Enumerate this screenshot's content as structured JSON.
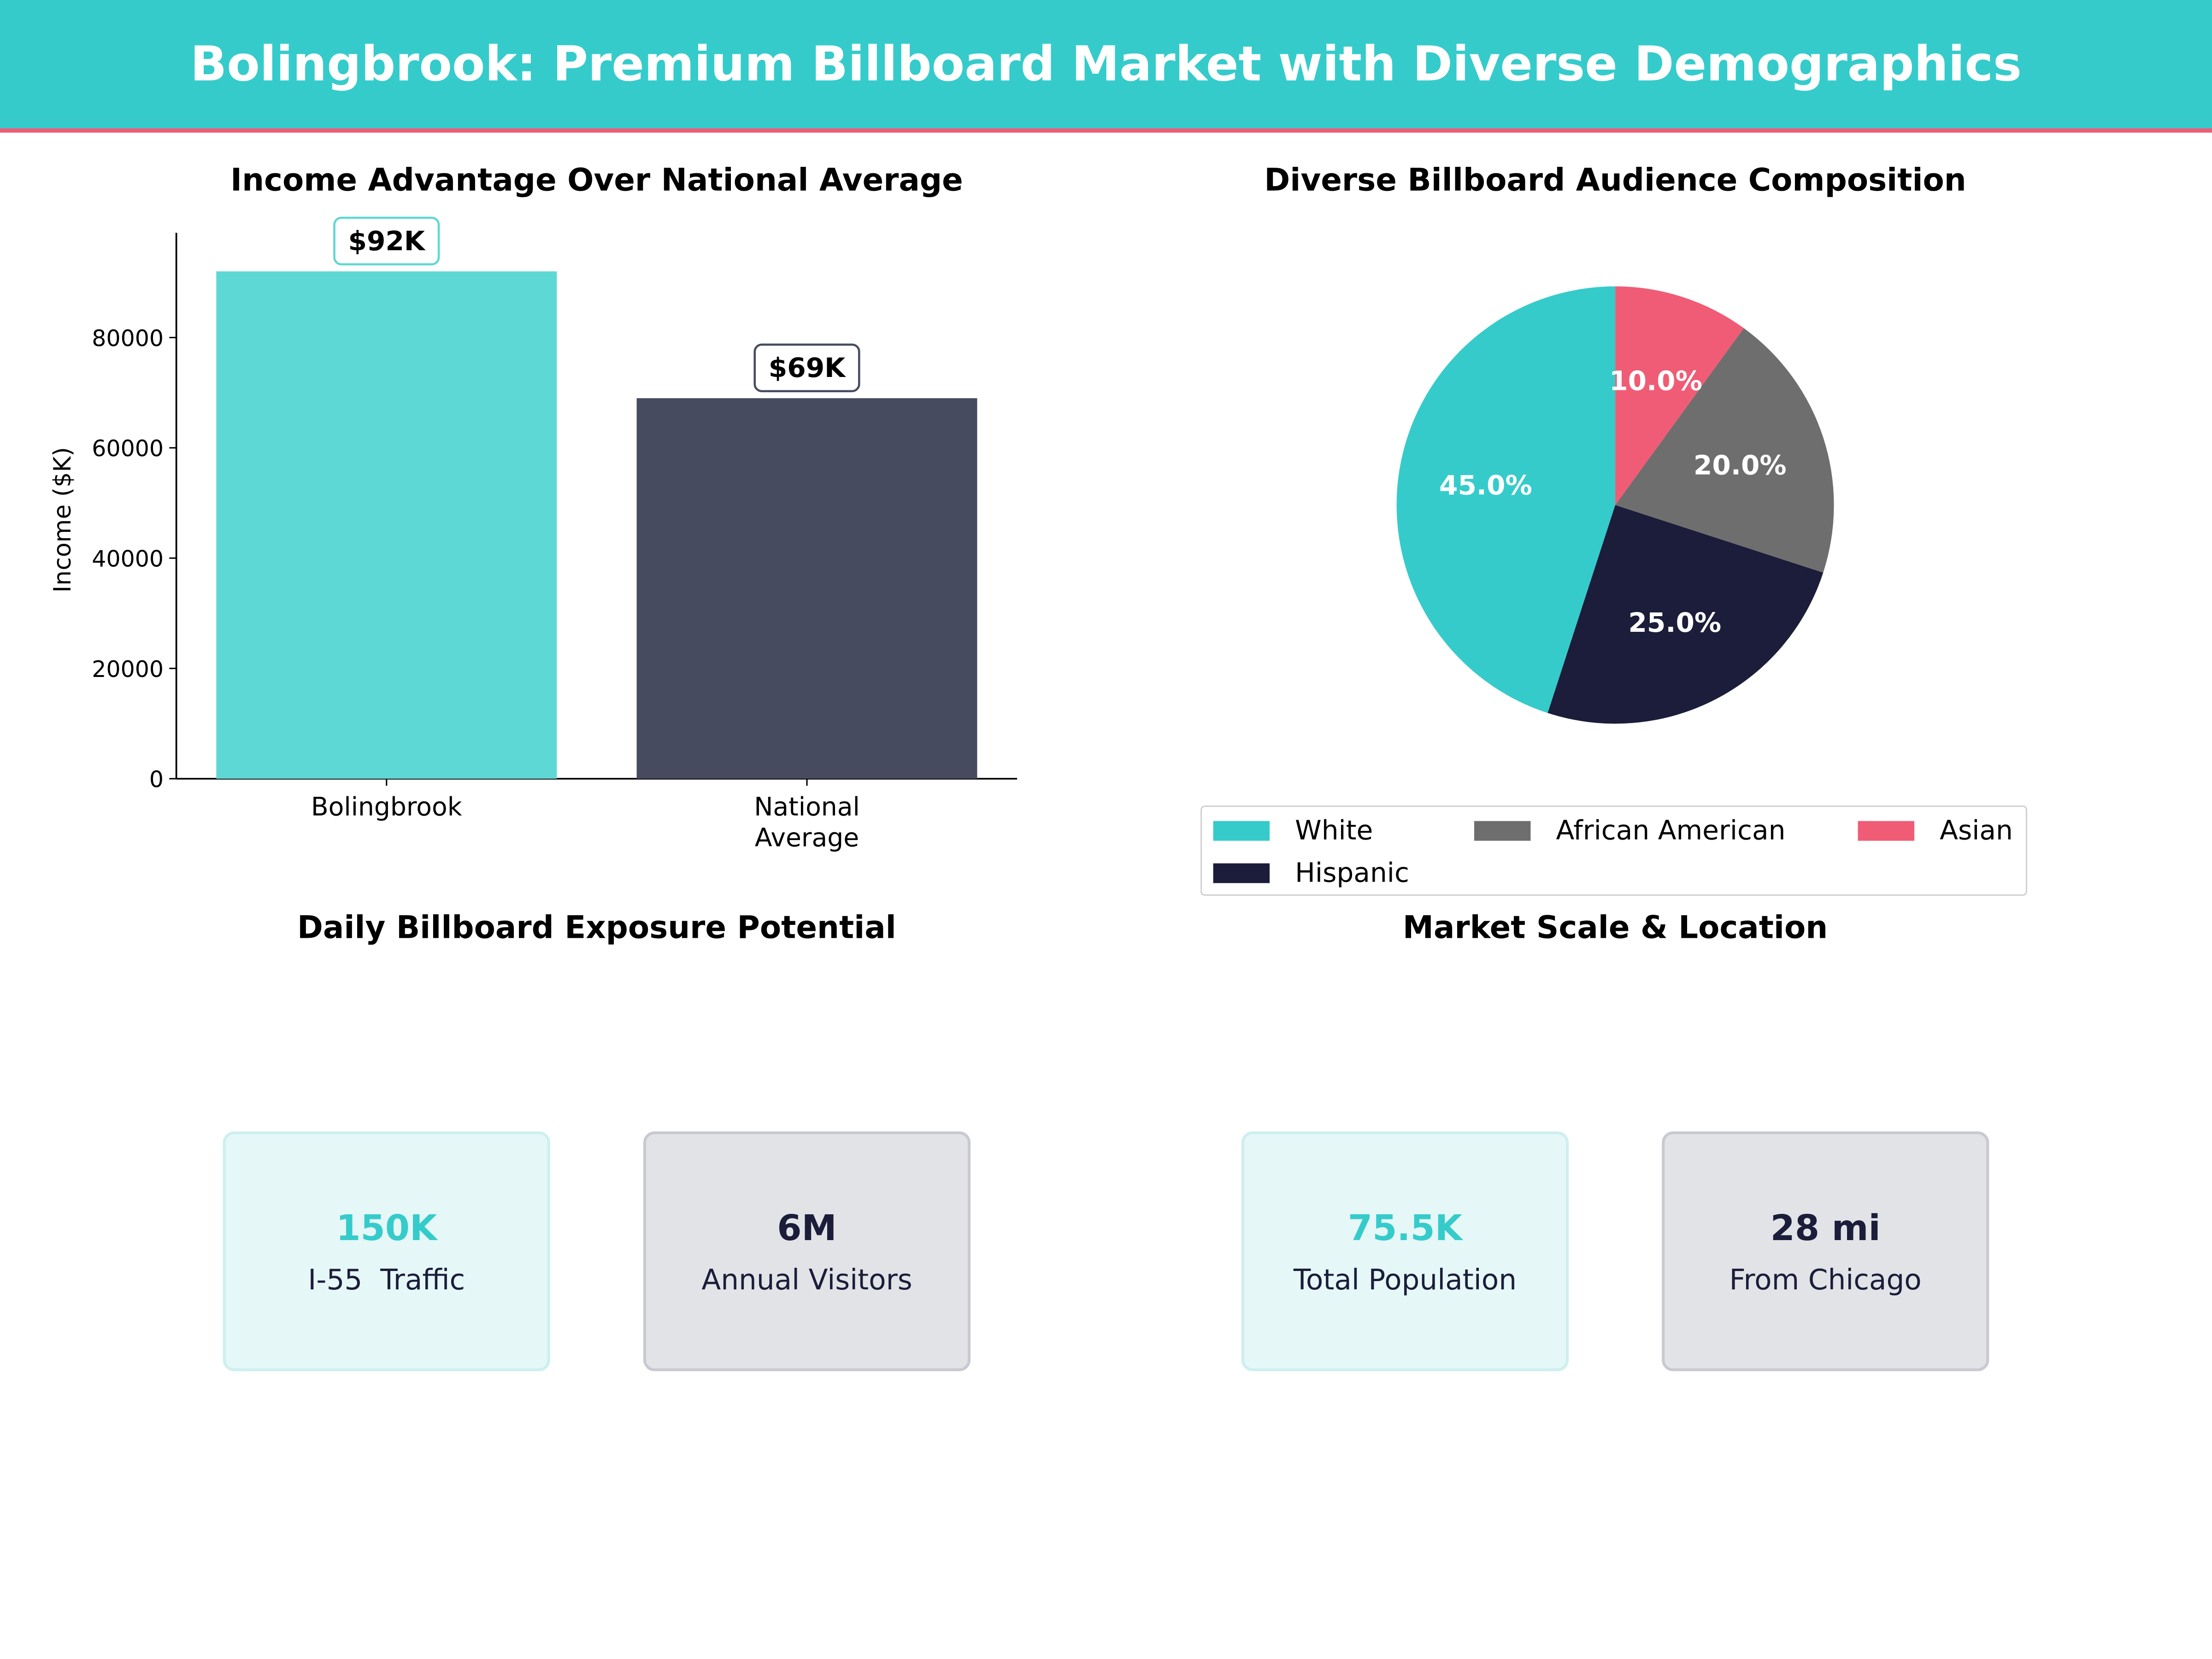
{
  "header": {
    "title": "Bolingbrook: Premium Billboard Market with Diverse Demographics"
  },
  "colors": {
    "teal": "#36CBCB",
    "light_teal": "#5DD8D4",
    "slate": "#464B60",
    "navy": "#1B1D3A",
    "gray": "#6E6E6E",
    "coral": "#F05C75"
  },
  "chart_data": [
    {
      "type": "bar",
      "title": "Income Advantage Over National Average",
      "ylabel": "Income ($K)",
      "xlabel": "",
      "categories": [
        "Bolingbrook",
        "National\nAverage"
      ],
      "values": [
        92000,
        69000
      ],
      "data_labels": [
        "$92K",
        "$69K"
      ],
      "colors": [
        "#5DD8D4",
        "#464B60"
      ],
      "ylim": [
        0,
        99000
      ],
      "yticks": [
        0,
        20000,
        40000,
        60000,
        80000
      ],
      "grid": false
    },
    {
      "type": "pie",
      "title": "Diverse Billboard Audience Composition",
      "labels": [
        "White",
        "Hispanic",
        "African American",
        "Asian"
      ],
      "values": [
        45,
        25,
        20,
        10
      ],
      "data_labels": [
        "45.0%",
        "25.0%",
        "20.0%",
        "10.0%"
      ],
      "colors": [
        "#36CBCB",
        "#1B1D3A",
        "#6E6E6E",
        "#F05C75"
      ],
      "start_angle": 90,
      "direction": "counterclockwise",
      "legend_placement": "bottom"
    }
  ],
  "exposure": {
    "title": "Daily Billboard Exposure Potential",
    "cards": [
      {
        "value": "150K",
        "label": "I-55  Traffic"
      },
      {
        "value": "6M",
        "label": "Annual Visitors"
      }
    ]
  },
  "market": {
    "title": "Market Scale & Location",
    "cards": [
      {
        "value": "75.5K",
        "label": "Total Population"
      },
      {
        "value": "28 mi",
        "label": "From Chicago"
      }
    ]
  }
}
